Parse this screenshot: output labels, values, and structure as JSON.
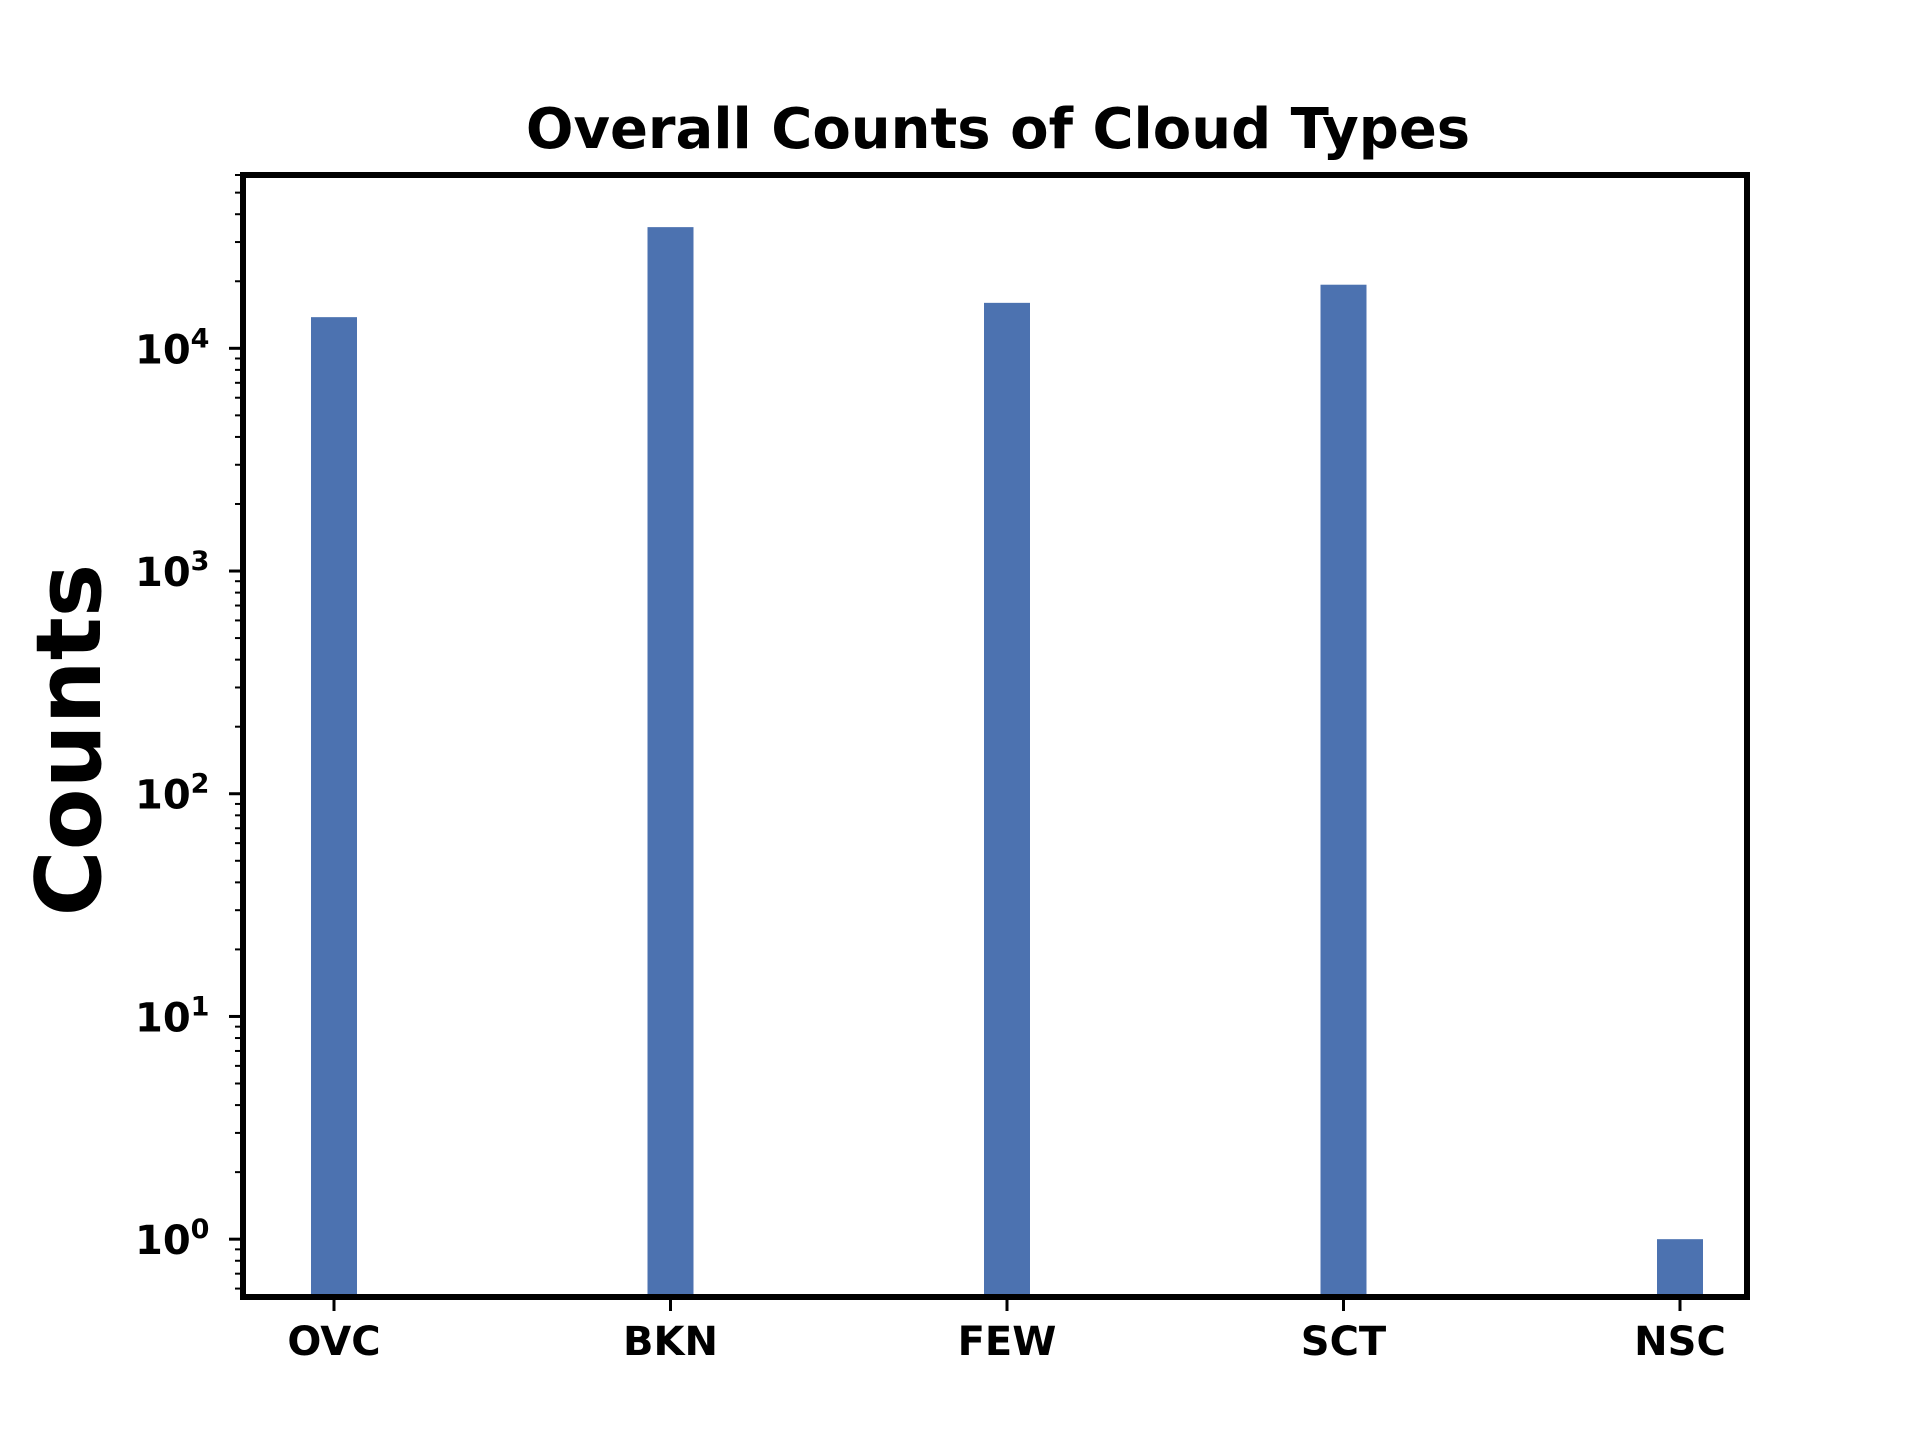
{
  "chart_data": {
    "type": "bar",
    "title": "Overall Counts of Cloud Types",
    "xlabel": "",
    "ylabel": "Counts",
    "yscale": "log",
    "ylim": [
      0.55,
      60000
    ],
    "categories": [
      "OVC",
      "BKN",
      "FEW",
      "SCT",
      "NSC"
    ],
    "values": [
      13800,
      35000,
      16000,
      19300,
      1
    ],
    "yticks": [
      {
        "value": 1,
        "base": "10",
        "exp": "0"
      },
      {
        "value": 10,
        "base": "10",
        "exp": "1"
      },
      {
        "value": 100,
        "base": "10",
        "exp": "2"
      },
      {
        "value": 1000,
        "base": "10",
        "exp": "3"
      },
      {
        "value": 10000,
        "base": "10",
        "exp": "4"
      }
    ],
    "bar_color": "#4c72b0",
    "grid": false,
    "legend": "none"
  }
}
